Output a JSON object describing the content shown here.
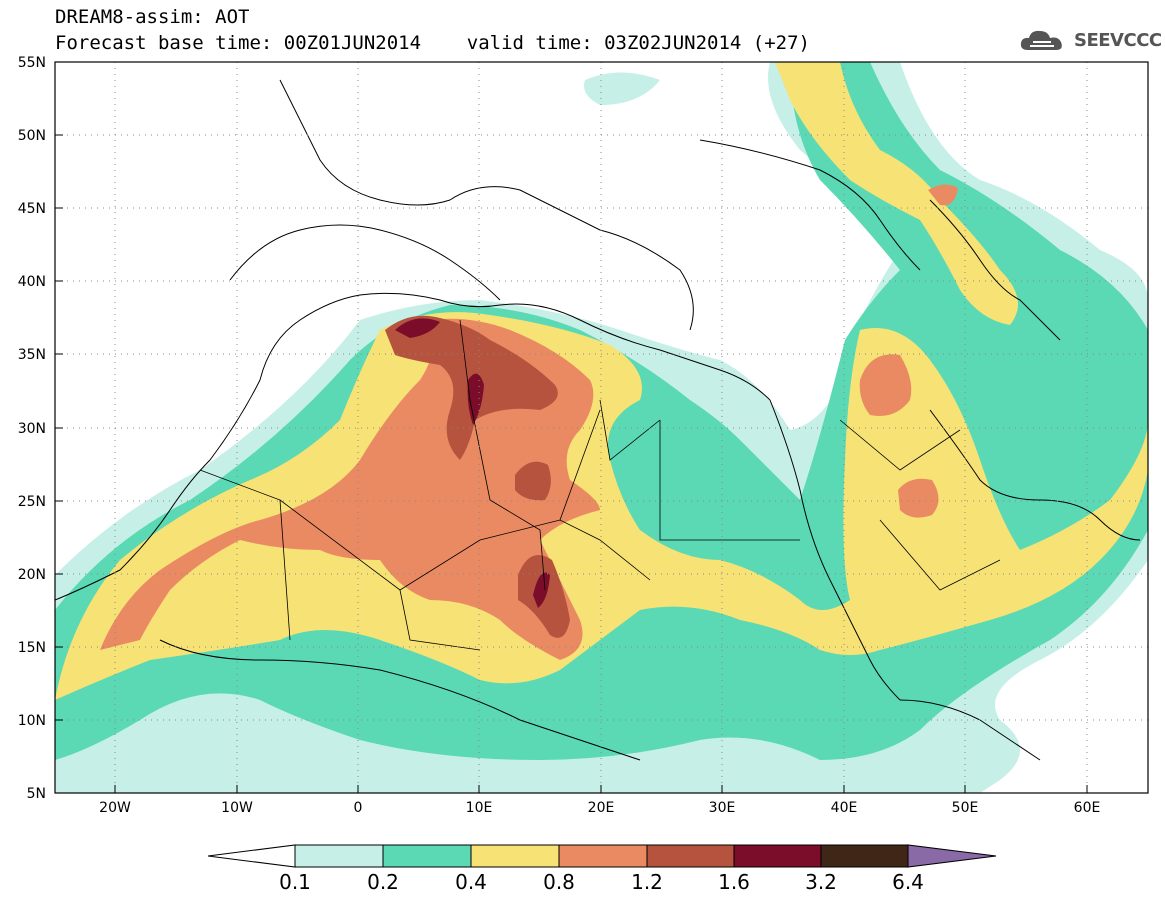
{
  "header": {
    "title_line1": "DREAM8-assim: AOT",
    "title_line2": "Forecast base time: 00Z01JUN2014    valid time: 03Z02JUN2014 (+27)",
    "logo_text": "SEEVCCC"
  },
  "map": {
    "lat_labels": [
      "55N",
      "50N",
      "45N",
      "40N",
      "35N",
      "30N",
      "25N",
      "20N",
      "15N",
      "10N",
      "5N"
    ],
    "lon_labels": [
      "20W",
      "10W",
      "0",
      "10E",
      "20E",
      "30E",
      "40E",
      "50E",
      "60E"
    ],
    "extent": {
      "lon_min": -25,
      "lon_max": 65,
      "lat_min": 5,
      "lat_max": 55
    }
  },
  "colorbar": {
    "labels": [
      "0.1",
      "0.2",
      "0.4",
      "0.8",
      "1.2",
      "1.6",
      "3.2",
      "6.4"
    ],
    "colors": [
      "#ffffff",
      "#c6efe8",
      "#5ad9b4",
      "#f7e276",
      "#ea8a63",
      "#b5533e",
      "#7b0c2a",
      "#3f2616",
      "#8a6aa6"
    ]
  }
}
